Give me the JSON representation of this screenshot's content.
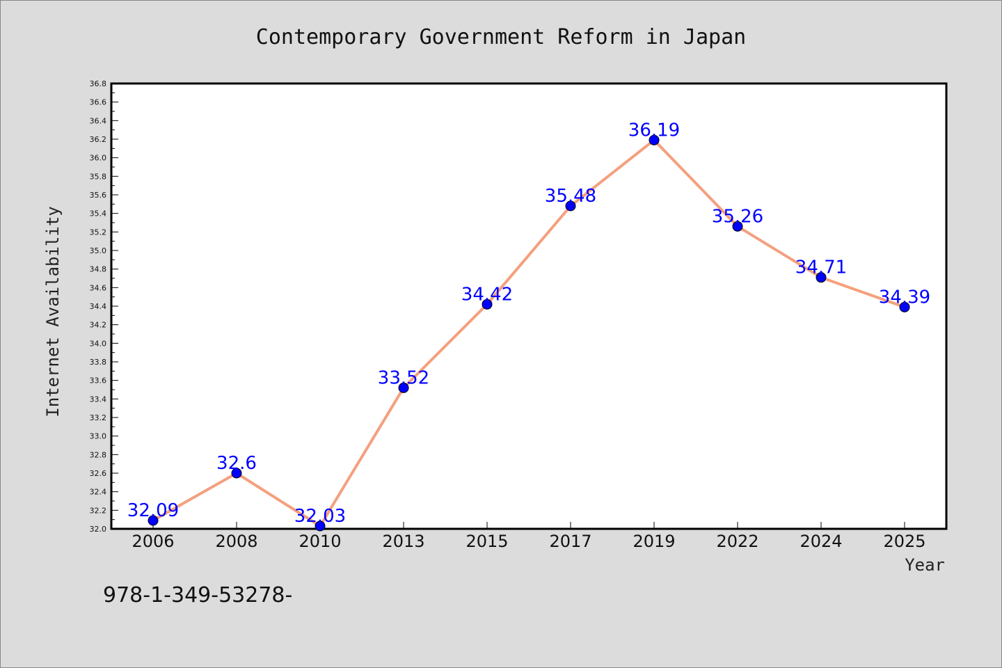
{
  "footer_text": "978-1-349-53278-",
  "colors": {
    "background": "#dcdcdc",
    "plot_background": "#ffffff",
    "line": "#f4a07e",
    "marker": "#0000ff",
    "data_label": "#0000ff"
  },
  "chart_data": {
    "type": "line",
    "title": "Contemporary Government Reform in Japan",
    "xlabel": "Year",
    "ylabel": "Internet Availability",
    "categories": [
      "2006",
      "2008",
      "2010",
      "2013",
      "2015",
      "2017",
      "2019",
      "2022",
      "2024",
      "2025"
    ],
    "series": [
      {
        "values": [
          32.09,
          32.6,
          32.03,
          33.52,
          34.42,
          35.48,
          36.19,
          35.26,
          34.71,
          34.39
        ],
        "labels": [
          "32.09",
          "32.6",
          "32.03",
          "33.52",
          "34.42",
          "35.48",
          "36.19",
          "35.26",
          "34.71",
          "34.39"
        ]
      }
    ],
    "ylim": [
      32.0,
      36.8
    ],
    "yticks": [
      "32.0",
      "32.2",
      "32.4",
      "32.6",
      "32.8",
      "33.0",
      "33.2",
      "33.4",
      "33.6",
      "33.8",
      "34.0",
      "34.2",
      "34.4",
      "34.6",
      "34.8",
      "35.0",
      "35.2",
      "35.4",
      "35.6",
      "35.8",
      "36.0",
      "36.2",
      "36.4",
      "36.6",
      "36.8"
    ],
    "grid": false,
    "legend": "none"
  }
}
